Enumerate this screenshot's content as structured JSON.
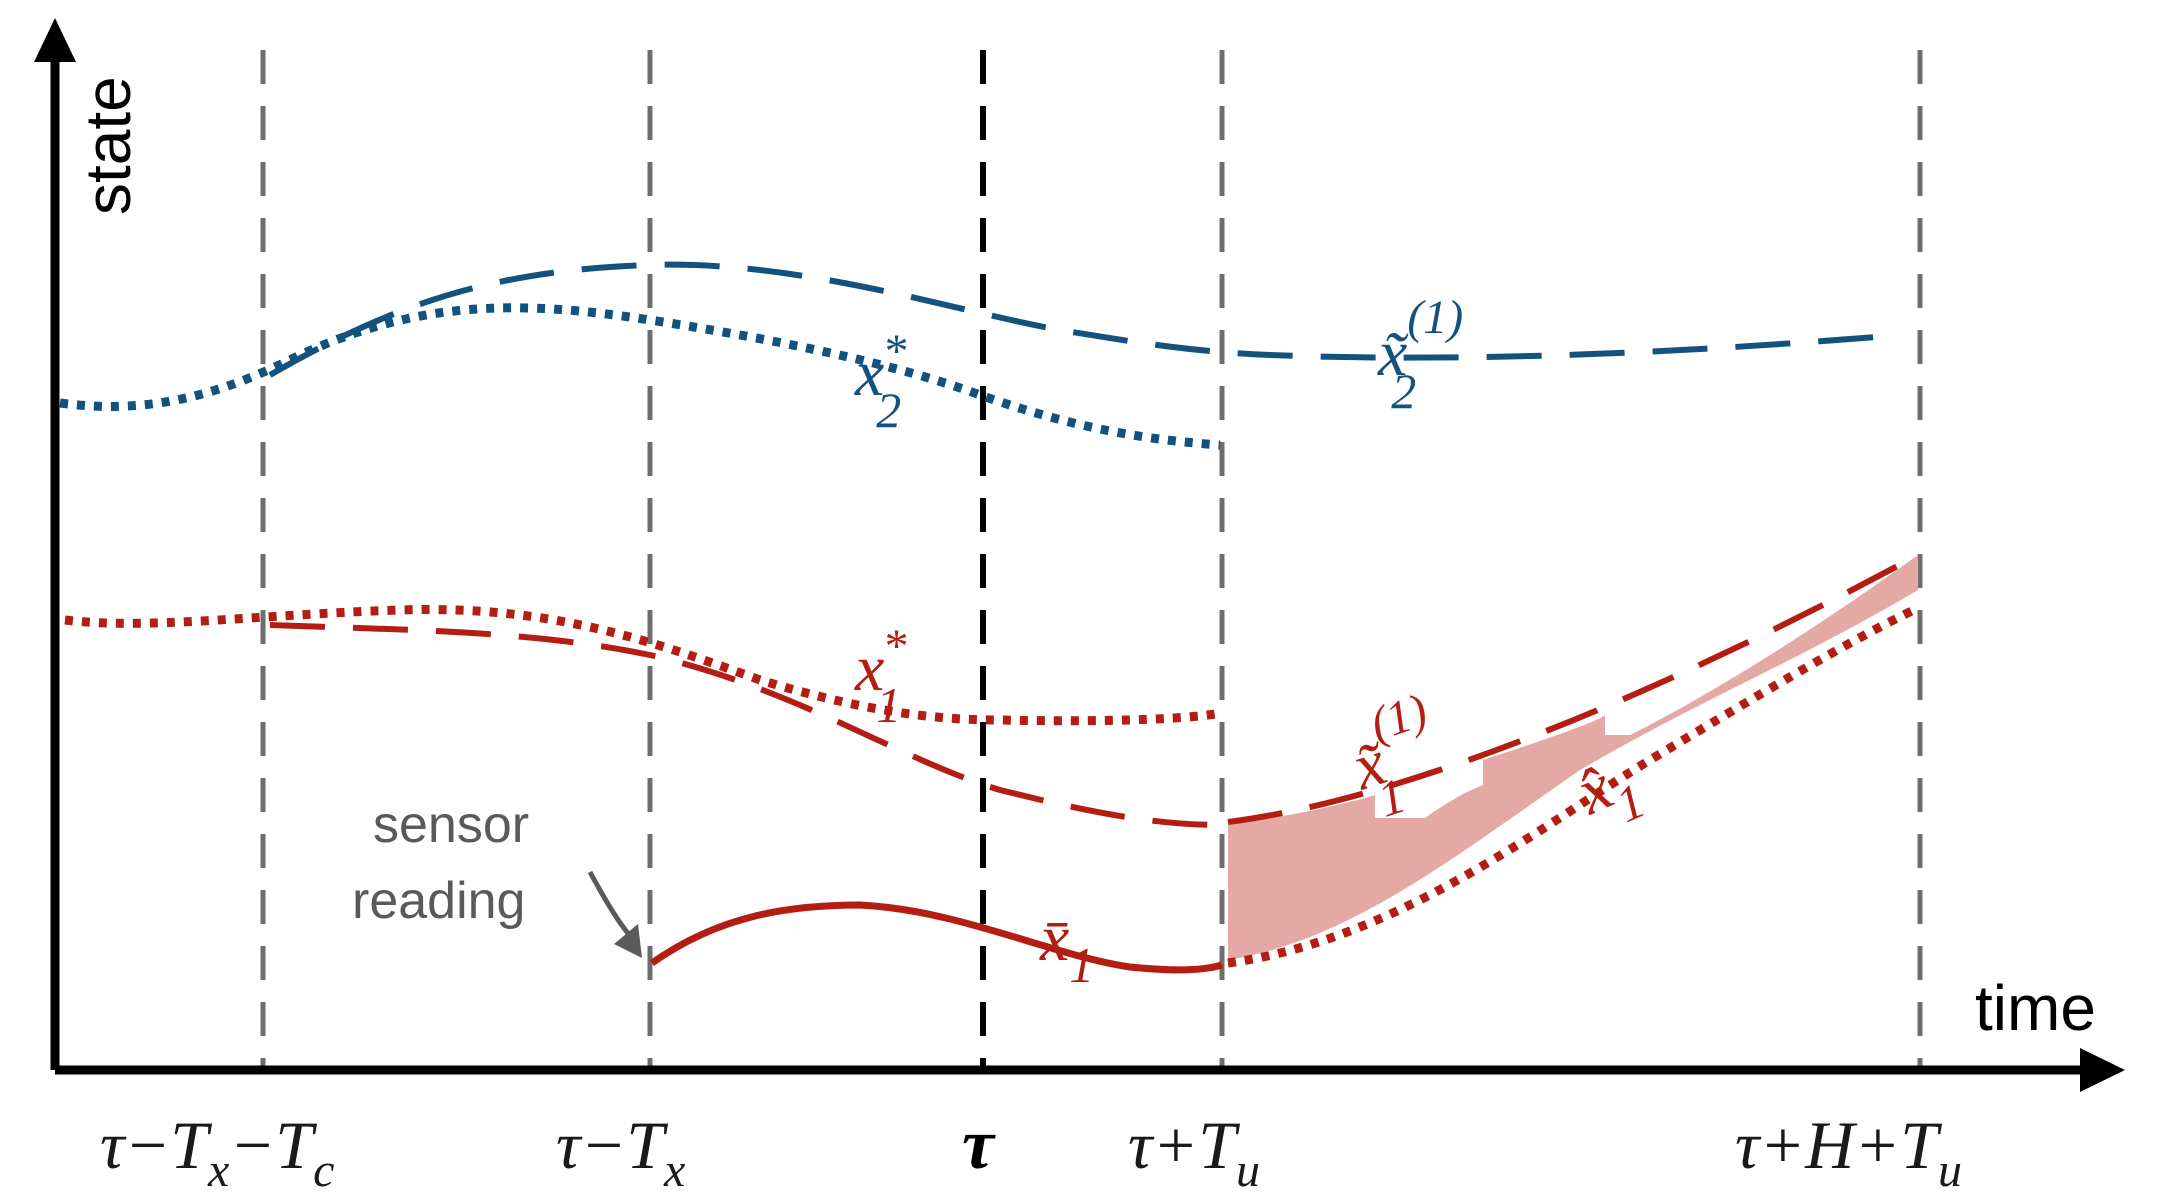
{
  "axes": {
    "y_label": "state",
    "x_label": "time"
  },
  "ticks": [
    {
      "main": "τ−T",
      "sub1": "x",
      "mid": "−T",
      "sub2": "c"
    },
    {
      "main": "τ−T",
      "sub1": "x"
    },
    {
      "main": "τ"
    },
    {
      "main": "τ+T",
      "sub1": "u"
    },
    {
      "main": "τ+H+T",
      "sub1": "u"
    }
  ],
  "curves": {
    "x2_star": {
      "base": "x",
      "sub": "2",
      "sup": "*"
    },
    "x2_tilde": {
      "base": "x̃",
      "sub": "2",
      "sup": "(1)"
    },
    "x1_star": {
      "base": "x",
      "sub": "1",
      "sup": "*"
    },
    "x1_tilde": {
      "base": "x̃",
      "sub": "1",
      "sup": "(1)"
    },
    "x1_hat": {
      "base": "x̂",
      "sub": "1"
    },
    "x1_bar": {
      "base": "x̄",
      "sub": "1"
    }
  },
  "annotation": {
    "line1": "sensor",
    "line2": "reading"
  },
  "colors": {
    "blue": "#13527f",
    "red": "#b31d12",
    "band": "#e5a9a5",
    "gridline": "#6e6e6e"
  }
}
